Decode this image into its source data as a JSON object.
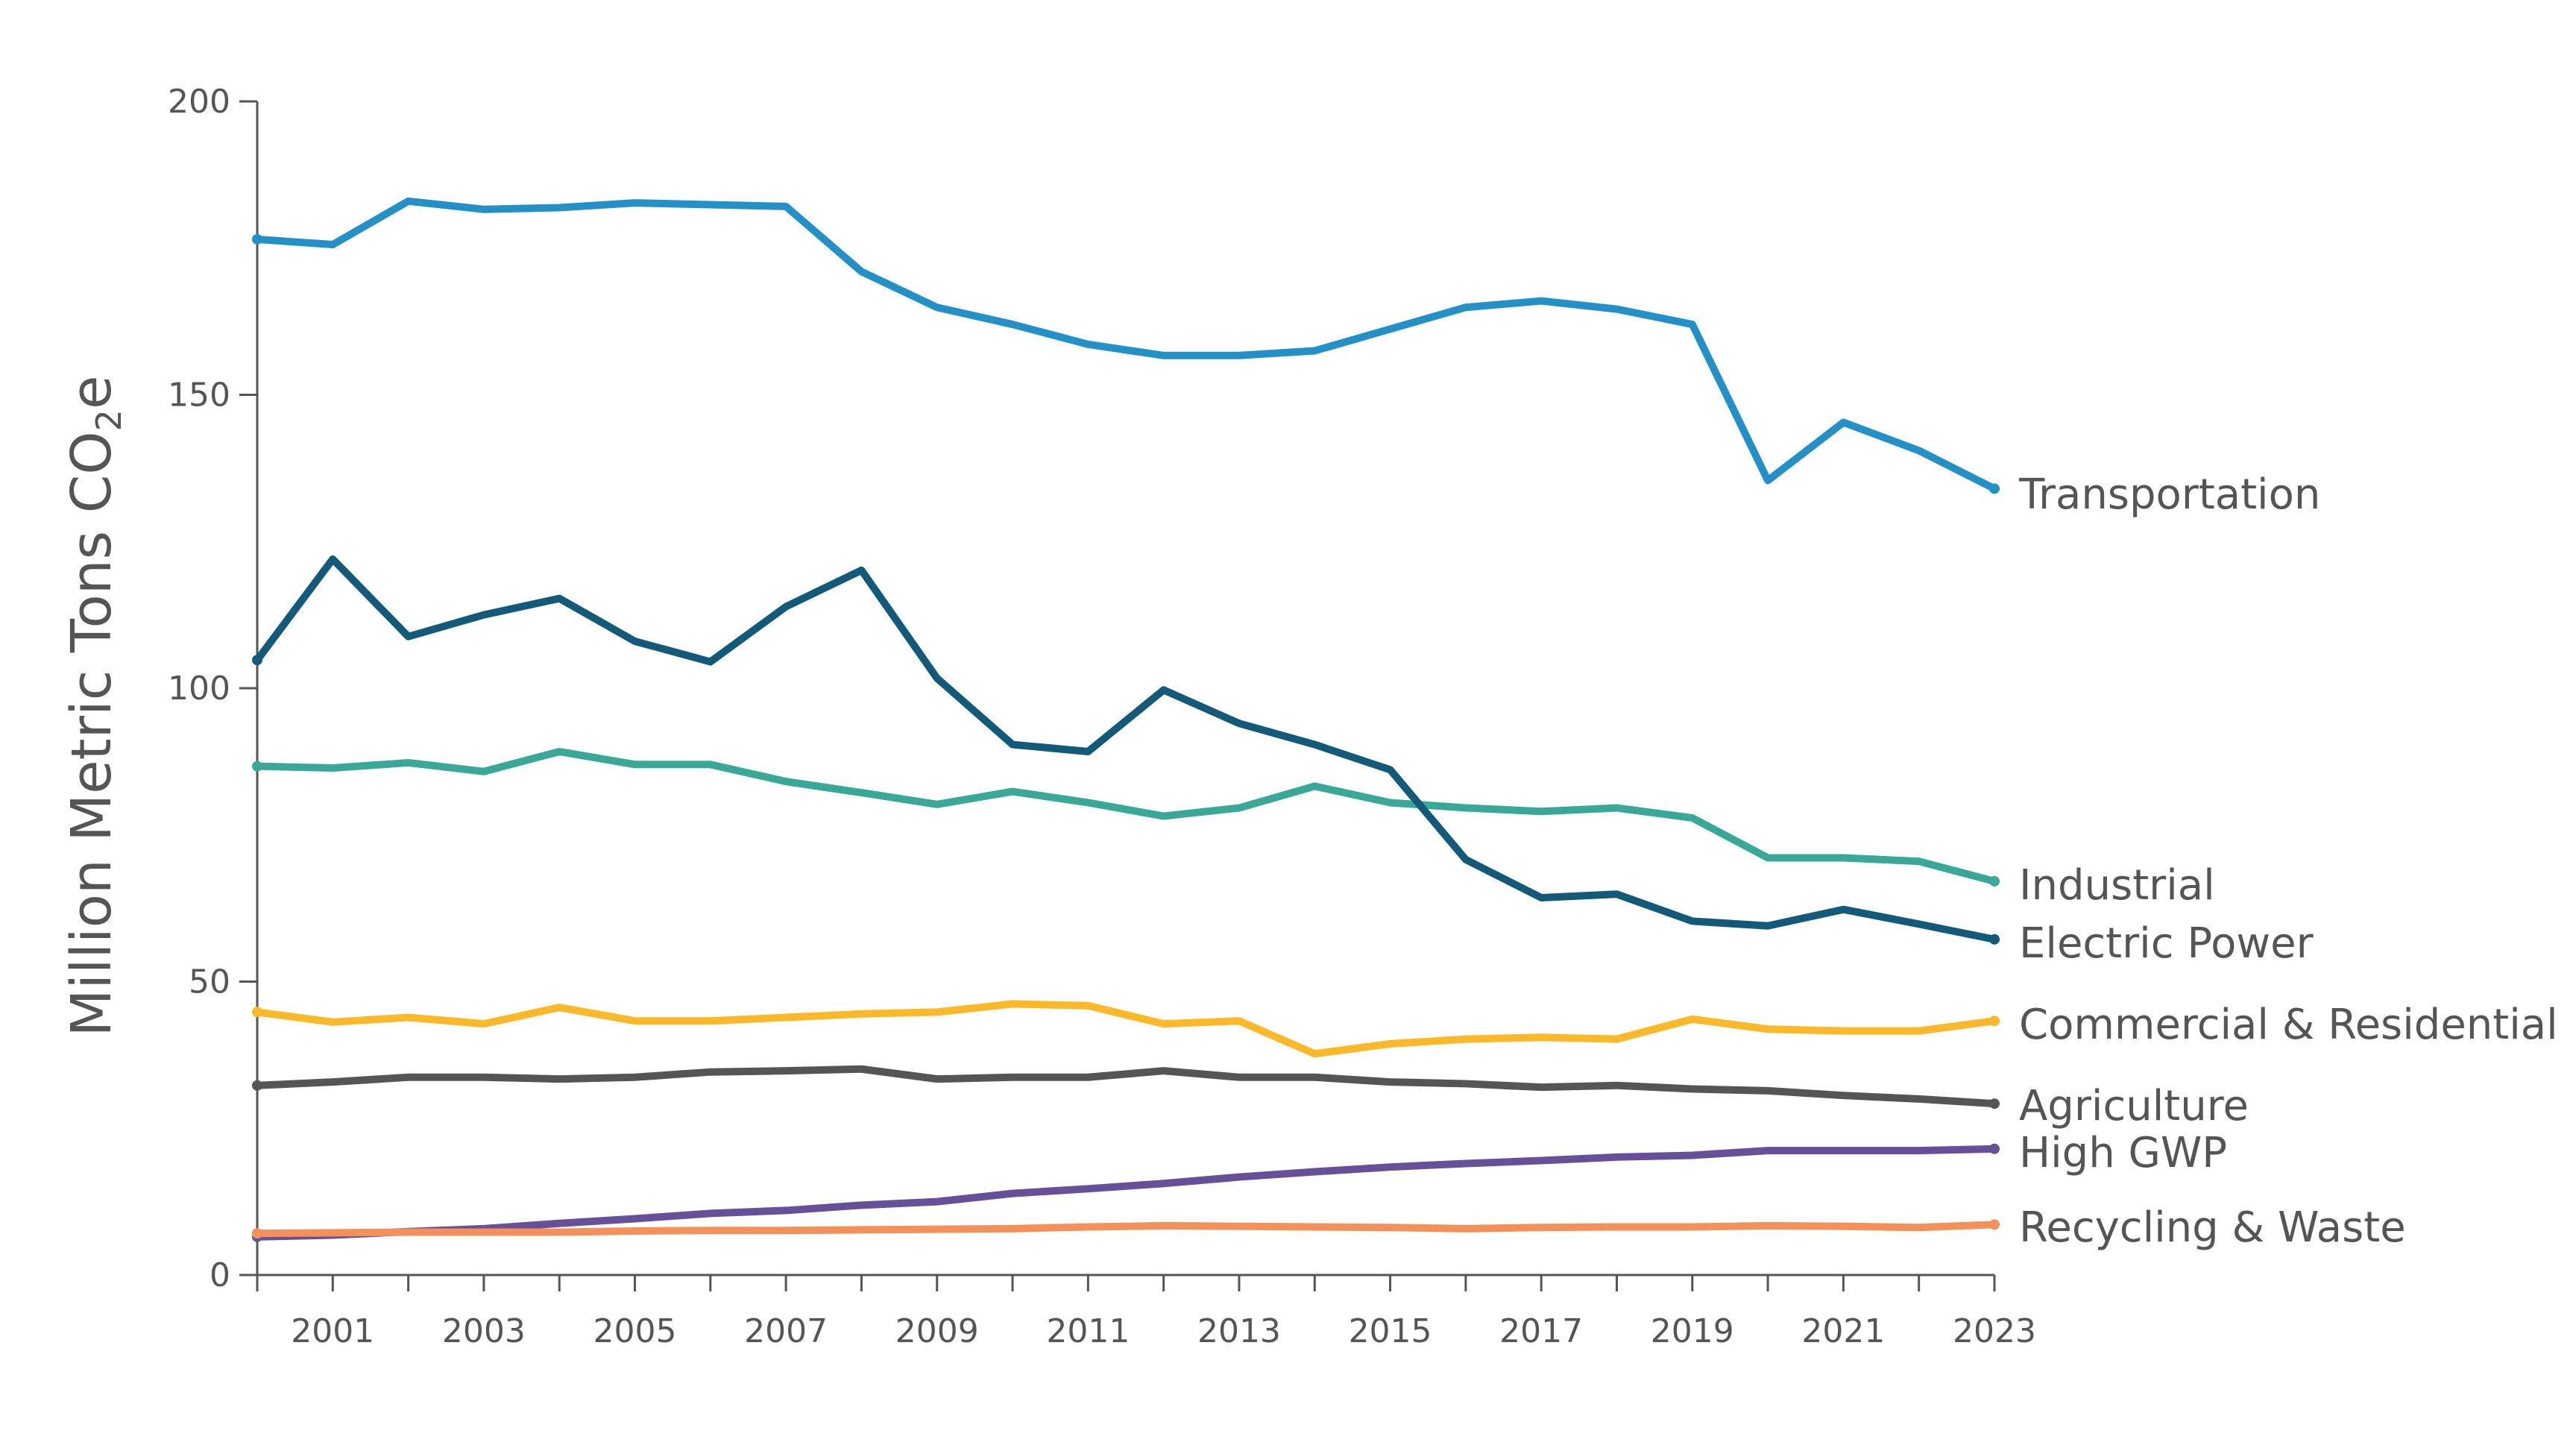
{
  "chart_data": {
    "type": "line",
    "title": "",
    "ylabel": "Million Metric Tons CO2e",
    "ylabel_main": "Million Metric Tons CO",
    "ylabel_sub": "2",
    "ylabel_end": "e",
    "xlabel": "",
    "ylim": [
      0,
      200
    ],
    "xlim": [
      2000,
      2023
    ],
    "yticks": [
      0,
      50,
      100,
      150,
      200
    ],
    "xticks_labeled": [
      2001,
      2003,
      2005,
      2007,
      2009,
      2011,
      2013,
      2015,
      2017,
      2019,
      2021,
      2023
    ],
    "grid": false,
    "legend": "direct labels at line ends (right)",
    "x": [
      2000,
      2001,
      2002,
      2003,
      2004,
      2005,
      2006,
      2007,
      2008,
      2009,
      2010,
      2011,
      2012,
      2013,
      2014,
      2015,
      2016,
      2017,
      2018,
      2019,
      2020,
      2021,
      2022,
      2023
    ],
    "series": [
      {
        "name": "Transportation",
        "color": "#2490c8",
        "values": [
          176.5,
          175.6,
          183,
          181.6,
          181.9,
          182.7,
          182.4,
          182.1,
          171,
          164.9,
          162,
          158.6,
          156.7,
          156.7,
          157.5,
          161.2,
          164.9,
          166,
          164.6,
          162,
          135.4,
          145.3,
          140.5,
          134
        ]
      },
      {
        "name": "Industrial",
        "color": "#3aa898",
        "values": [
          86.7,
          86.4,
          87.3,
          85.8,
          89.2,
          87,
          87,
          84.1,
          82.2,
          80.2,
          82.4,
          80.5,
          78.2,
          79.6,
          83.3,
          80.5,
          79.6,
          79,
          79.6,
          77.9,
          71.1,
          71.1,
          70.5,
          67.1
        ]
      },
      {
        "name": "Electric Power",
        "color": "#135a7a",
        "values": [
          104.8,
          122,
          108.8,
          112.5,
          115.3,
          108,
          104.5,
          113.9,
          120.1,
          101.7,
          90.4,
          89.2,
          99.7,
          94,
          90.4,
          86.1,
          70.8,
          64.3,
          64.9,
          60.3,
          59.5,
          62.3,
          59.8,
          57.2
        ]
      },
      {
        "name": "Commercial & Residential",
        "color": "#fbb829",
        "values": [
          44.8,
          43.1,
          43.9,
          42.8,
          45.6,
          43.3,
          43.3,
          43.9,
          44.5,
          44.8,
          46.2,
          45.9,
          42.8,
          43.3,
          37.7,
          39.4,
          40.2,
          40.5,
          40.2,
          43.6,
          41.9,
          41.6,
          41.6,
          43.3
        ]
      },
      {
        "name": "Agriculture",
        "color": "#555555",
        "values": [
          32.3,
          32.9,
          33.7,
          33.7,
          33.4,
          33.7,
          34.6,
          34.8,
          35.1,
          33.4,
          33.7,
          33.7,
          34.8,
          33.7,
          33.7,
          32.9,
          32.6,
          32,
          32.3,
          31.7,
          31.4,
          30.6,
          30,
          29.2
        ]
      },
      {
        "name": "High GWP",
        "color": "#66509a",
        "values": [
          6.5,
          6.8,
          7.4,
          7.9,
          8.8,
          9.6,
          10.5,
          11,
          11.9,
          12.5,
          13.9,
          14.7,
          15.6,
          16.7,
          17.6,
          18.4,
          19,
          19.5,
          20.1,
          20.4,
          21.2,
          21.2,
          21.2,
          21.5
        ]
      },
      {
        "name": "Recycling & Waste",
        "color": "#f4915a",
        "values": [
          7.1,
          7.2,
          7.3,
          7.3,
          7.3,
          7.5,
          7.6,
          7.6,
          7.7,
          7.8,
          7.9,
          8.2,
          8.4,
          8.3,
          8.2,
          8.1,
          7.9,
          8.1,
          8.2,
          8.2,
          8.4,
          8.3,
          8.1,
          8.6
        ]
      }
    ]
  }
}
